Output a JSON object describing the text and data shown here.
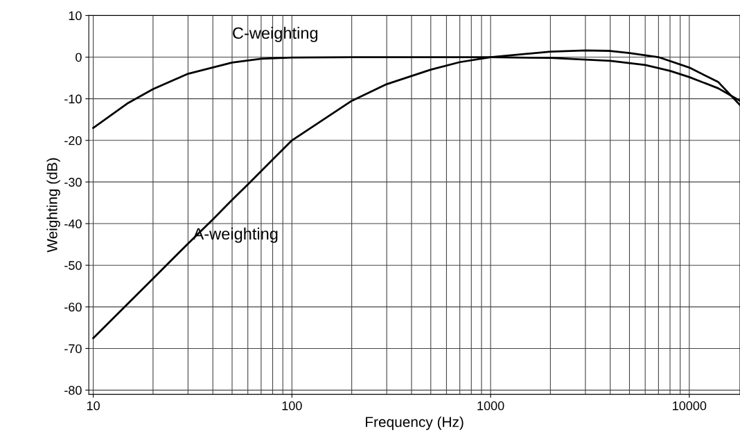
{
  "chart_data": {
    "type": "line",
    "xlabel": "Frequency (Hz)",
    "ylabel": "Weighting (dB)",
    "log": "x",
    "grid": true,
    "legend": false,
    "marker": "none",
    "line_style": "solid",
    "xlim": [
      9.5,
      18000
    ],
    "xticks": [
      10,
      100,
      1000,
      10000
    ],
    "ylim": [
      -81,
      10
    ],
    "yticks": [
      10,
      0,
      -10,
      -20,
      -30,
      -40,
      -50,
      -60,
      -70,
      -80
    ],
    "series": [
      {
        "name": "C-weighting",
        "color": "#000000",
        "x": [
          10,
          15,
          20,
          30,
          50,
          70,
          100,
          200,
          1000,
          2000,
          4000,
          6000,
          8000,
          10000,
          14000,
          18000
        ],
        "values": [
          -17,
          -11,
          -7.7,
          -4,
          -1.3,
          -0.4,
          -0.1,
          0,
          0,
          -0.2,
          -0.9,
          -1.9,
          -3.3,
          -4.8,
          -7.5,
          -10.5
        ]
      },
      {
        "name": "A-weighting",
        "color": "#000000",
        "x": [
          10,
          20,
          30,
          40,
          50,
          60,
          80,
          100,
          200,
          300,
          500,
          700,
          1000,
          2000,
          3000,
          4000,
          5000,
          7000,
          10000,
          14000,
          18000
        ],
        "values": [
          -67.5,
          -53.2,
          -44.8,
          -39,
          -34.3,
          -30.6,
          -24.6,
          -20,
          -10.5,
          -6.5,
          -3,
          -1.2,
          0,
          1.3,
          1.6,
          1.5,
          1,
          0,
          -2.5,
          -6,
          -11.5
        ]
      }
    ]
  }
}
